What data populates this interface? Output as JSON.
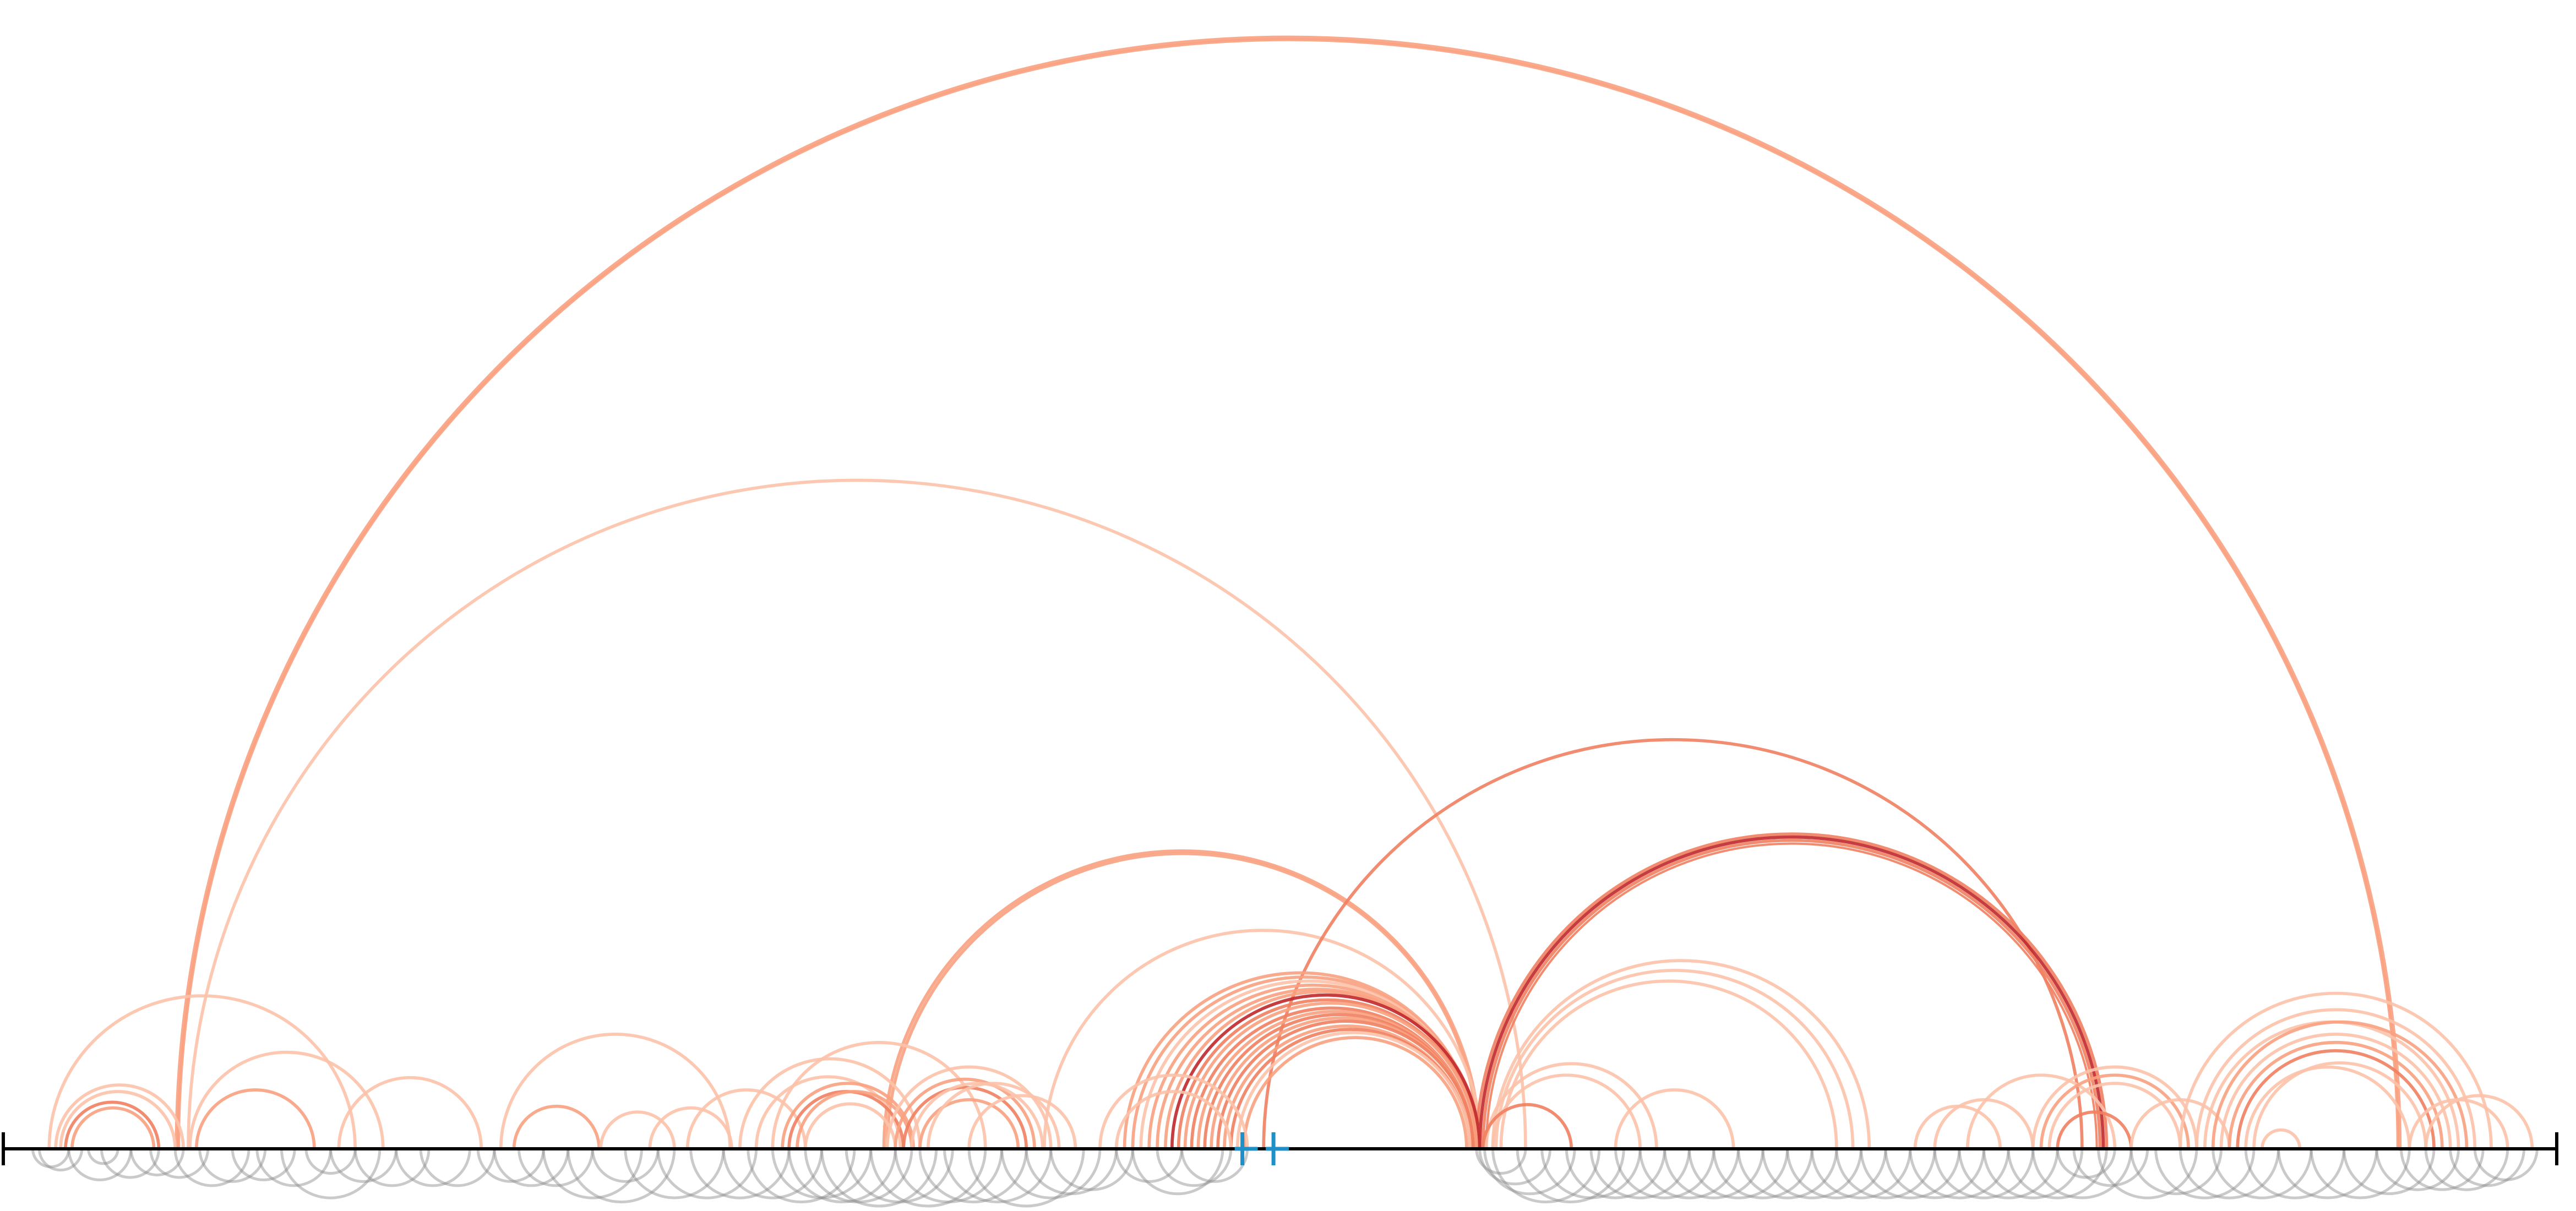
{
  "colors": {
    "axis": "#000000",
    "background": "#ffffff",
    "below_arc": "#8a8a8a",
    "marker": "#1f8fc7",
    "arc_light": "#fcc2aa",
    "arc_mid": "#f9a180",
    "arc_strong": "#f08060",
    "arc_dark": "#c0282c"
  },
  "chart_data": {
    "type": "arc",
    "title": "",
    "xlabel": "",
    "ylabel": "",
    "x_range": [
      0,
      1560
    ],
    "grid": false,
    "legend": "none",
    "markers": [
      {
        "pos": 757,
        "color": "marker"
      },
      {
        "pos": 776,
        "color": "marker"
      }
    ],
    "above_arcs": [
      {
        "start": 106,
        "end": 1464,
        "color": "arc_mid",
        "weight": 3
      },
      {
        "start": 107,
        "end": 1463,
        "color": "arc_mid",
        "weight": 2
      },
      {
        "start": 113,
        "end": 930,
        "color": "arc_light",
        "weight": 2
      },
      {
        "start": 538,
        "end": 902,
        "color": "arc_mid",
        "weight": 2
      },
      {
        "start": 540,
        "end": 901,
        "color": "arc_mid",
        "weight": 2
      },
      {
        "start": 636,
        "end": 903,
        "color": "arc_light",
        "weight": 2
      },
      {
        "start": 770,
        "end": 1270,
        "color": "arc_strong",
        "weight": 2
      },
      {
        "start": 900,
        "end": 1285,
        "color": "arc_strong",
        "weight": 2
      },
      {
        "start": 902,
        "end": 1283,
        "color": "arc_dark",
        "weight": 2
      },
      {
        "start": 904,
        "end": 1281,
        "color": "arc_strong",
        "weight": 2
      },
      {
        "start": 906,
        "end": 1279,
        "color": "arc_strong",
        "weight": 1
      },
      {
        "start": 910,
        "end": 1140,
        "color": "arc_light",
        "weight": 2
      },
      {
        "start": 912,
        "end": 1130,
        "color": "arc_light",
        "weight": 2
      },
      {
        "start": 915,
        "end": 1120,
        "color": "arc_light",
        "weight": 2
      },
      {
        "start": 906,
        "end": 1010,
        "color": "arc_light",
        "weight": 2
      },
      {
        "start": 910,
        "end": 1000,
        "color": "arc_light",
        "weight": 2
      },
      {
        "start": 985,
        "end": 1057,
        "color": "arc_light",
        "weight": 2
      },
      {
        "start": 904,
        "end": 958,
        "color": "arc_strong",
        "weight": 2
      },
      {
        "start": 685,
        "end": 900,
        "color": "arc_mid",
        "weight": 2
      },
      {
        "start": 690,
        "end": 900,
        "color": "arc_mid",
        "weight": 2
      },
      {
        "start": 695,
        "end": 900,
        "color": "arc_light",
        "weight": 2
      },
      {
        "start": 700,
        "end": 900,
        "color": "arc_mid",
        "weight": 2
      },
      {
        "start": 705,
        "end": 900,
        "color": "arc_mid",
        "weight": 2
      },
      {
        "start": 710,
        "end": 902,
        "color": "arc_mid",
        "weight": 2
      },
      {
        "start": 714,
        "end": 902,
        "color": "arc_dark",
        "weight": 2
      },
      {
        "start": 718,
        "end": 900,
        "color": "arc_strong",
        "weight": 2
      },
      {
        "start": 722,
        "end": 900,
        "color": "arc_mid",
        "weight": 2
      },
      {
        "start": 726,
        "end": 898,
        "color": "arc_strong",
        "weight": 2
      },
      {
        "start": 730,
        "end": 898,
        "color": "arc_mid",
        "weight": 2
      },
      {
        "start": 734,
        "end": 898,
        "color": "arc_strong",
        "weight": 2
      },
      {
        "start": 738,
        "end": 898,
        "color": "arc_mid",
        "weight": 2
      },
      {
        "start": 742,
        "end": 898,
        "color": "arc_strong",
        "weight": 2
      },
      {
        "start": 746,
        "end": 896,
        "color": "arc_mid",
        "weight": 2
      },
      {
        "start": 750,
        "end": 896,
        "color": "arc_strong",
        "weight": 2
      },
      {
        "start": 754,
        "end": 896,
        "color": "arc_light",
        "weight": 2
      },
      {
        "start": 758,
        "end": 894,
        "color": "arc_mid",
        "weight": 2
      },
      {
        "start": 670,
        "end": 760,
        "color": "arc_light",
        "weight": 2
      },
      {
        "start": 680,
        "end": 750,
        "color": "arc_light",
        "weight": 2
      },
      {
        "start": 28,
        "end": 215,
        "color": "arc_light",
        "weight": 2
      },
      {
        "start": 32,
        "end": 110,
        "color": "arc_light",
        "weight": 2
      },
      {
        "start": 35,
        "end": 105,
        "color": "arc_light",
        "weight": 2
      },
      {
        "start": 38,
        "end": 95,
        "color": "arc_strong",
        "weight": 2
      },
      {
        "start": 42,
        "end": 92,
        "color": "arc_mid",
        "weight": 2
      },
      {
        "start": 114,
        "end": 232,
        "color": "arc_light",
        "weight": 2
      },
      {
        "start": 118,
        "end": 190,
        "color": "arc_mid",
        "weight": 2
      },
      {
        "start": 205,
        "end": 292,
        "color": "arc_light",
        "weight": 2
      },
      {
        "start": 304,
        "end": 444,
        "color": "arc_light",
        "weight": 2
      },
      {
        "start": 312,
        "end": 364,
        "color": "arc_mid",
        "weight": 2
      },
      {
        "start": 365,
        "end": 410,
        "color": "arc_light",
        "weight": 2
      },
      {
        "start": 395,
        "end": 445,
        "color": "arc_light",
        "weight": 2
      },
      {
        "start": 418,
        "end": 490,
        "color": "arc_light",
        "weight": 2
      },
      {
        "start": 450,
        "end": 560,
        "color": "arc_light",
        "weight": 2
      },
      {
        "start": 460,
        "end": 548,
        "color": "arc_light",
        "weight": 2
      },
      {
        "start": 470,
        "end": 600,
        "color": "arc_light",
        "weight": 2
      },
      {
        "start": 476,
        "end": 556,
        "color": "arc_mid",
        "weight": 2
      },
      {
        "start": 480,
        "end": 550,
        "color": "arc_strong",
        "weight": 2
      },
      {
        "start": 485,
        "end": 555,
        "color": "arc_mid",
        "weight": 2
      },
      {
        "start": 490,
        "end": 545,
        "color": "arc_light",
        "weight": 2
      },
      {
        "start": 540,
        "end": 640,
        "color": "arc_light",
        "weight": 2
      },
      {
        "start": 545,
        "end": 630,
        "color": "arc_mid",
        "weight": 2
      },
      {
        "start": 550,
        "end": 625,
        "color": "arc_strong",
        "weight": 2
      },
      {
        "start": 555,
        "end": 635,
        "color": "arc_light",
        "weight": 2
      },
      {
        "start": 560,
        "end": 620,
        "color": "arc_mid",
        "weight": 2
      },
      {
        "start": 565,
        "end": 645,
        "color": "arc_light",
        "weight": 2
      },
      {
        "start": 590,
        "end": 655,
        "color": "arc_light",
        "weight": 2
      },
      {
        "start": 1168,
        "end": 1220,
        "color": "arc_light",
        "weight": 2
      },
      {
        "start": 1180,
        "end": 1240,
        "color": "arc_light",
        "weight": 2
      },
      {
        "start": 1200,
        "end": 1290,
        "color": "arc_light",
        "weight": 2
      },
      {
        "start": 1240,
        "end": 1340,
        "color": "arc_light",
        "weight": 2
      },
      {
        "start": 1245,
        "end": 1335,
        "color": "arc_mid",
        "weight": 2
      },
      {
        "start": 1250,
        "end": 1330,
        "color": "arc_light",
        "weight": 2
      },
      {
        "start": 1255,
        "end": 1300,
        "color": "arc_strong",
        "weight": 2
      },
      {
        "start": 1300,
        "end": 1360,
        "color": "arc_light",
        "weight": 2
      },
      {
        "start": 1330,
        "end": 1520,
        "color": "arc_light",
        "weight": 2
      },
      {
        "start": 1340,
        "end": 1510,
        "color": "arc_light",
        "weight": 2
      },
      {
        "start": 1345,
        "end": 1500,
        "color": "arc_light",
        "weight": 2
      },
      {
        "start": 1350,
        "end": 1505,
        "color": "arc_mid",
        "weight": 2
      },
      {
        "start": 1355,
        "end": 1495,
        "color": "arc_light",
        "weight": 2
      },
      {
        "start": 1360,
        "end": 1490,
        "color": "arc_mid",
        "weight": 2
      },
      {
        "start": 1365,
        "end": 1485,
        "color": "arc_strong",
        "weight": 2
      },
      {
        "start": 1370,
        "end": 1470,
        "color": "arc_light",
        "weight": 2
      },
      {
        "start": 1375,
        "end": 1480,
        "color": "arc_light",
        "weight": 2
      },
      {
        "start": 1380,
        "end": 1403,
        "color": "arc_light",
        "weight": 2
      },
      {
        "start": 1480,
        "end": 1545,
        "color": "arc_light",
        "weight": 2
      },
      {
        "start": 1470,
        "end": 1530,
        "color": "arc_light",
        "weight": 2
      }
    ],
    "below_arcs": [
      {
        "start": 18,
        "end": 40
      },
      {
        "start": 22,
        "end": 48
      },
      {
        "start": 40,
        "end": 78
      },
      {
        "start": 52,
        "end": 70
      },
      {
        "start": 60,
        "end": 95
      },
      {
        "start": 78,
        "end": 110
      },
      {
        "start": 90,
        "end": 125
      },
      {
        "start": 105,
        "end": 150
      },
      {
        "start": 120,
        "end": 160
      },
      {
        "start": 140,
        "end": 178
      },
      {
        "start": 155,
        "end": 200
      },
      {
        "start": 170,
        "end": 230
      },
      {
        "start": 185,
        "end": 215
      },
      {
        "start": 200,
        "end": 240
      },
      {
        "start": 215,
        "end": 260
      },
      {
        "start": 240,
        "end": 285
      },
      {
        "start": 255,
        "end": 300
      },
      {
        "start": 290,
        "end": 330
      },
      {
        "start": 300,
        "end": 345
      },
      {
        "start": 315,
        "end": 360
      },
      {
        "start": 330,
        "end": 390
      },
      {
        "start": 345,
        "end": 410
      },
      {
        "start": 360,
        "end": 400
      },
      {
        "start": 380,
        "end": 440
      },
      {
        "start": 400,
        "end": 460
      },
      {
        "start": 420,
        "end": 480
      },
      {
        "start": 440,
        "end": 500
      },
      {
        "start": 455,
        "end": 520
      },
      {
        "start": 470,
        "end": 530
      },
      {
        "start": 480,
        "end": 545
      },
      {
        "start": 490,
        "end": 555
      },
      {
        "start": 500,
        "end": 570
      },
      {
        "start": 515,
        "end": 580
      },
      {
        "start": 530,
        "end": 600
      },
      {
        "start": 545,
        "end": 610
      },
      {
        "start": 560,
        "end": 625
      },
      {
        "start": 575,
        "end": 640
      },
      {
        "start": 590,
        "end": 660
      },
      {
        "start": 610,
        "end": 670
      },
      {
        "start": 625,
        "end": 680
      },
      {
        "start": 640,
        "end": 690
      },
      {
        "start": 680,
        "end": 720
      },
      {
        "start": 690,
        "end": 745
      },
      {
        "start": 705,
        "end": 750
      },
      {
        "start": 720,
        "end": 760
      },
      {
        "start": 900,
        "end": 930
      },
      {
        "start": 902,
        "end": 945
      },
      {
        "start": 905,
        "end": 960
      },
      {
        "start": 910,
        "end": 975
      },
      {
        "start": 925,
        "end": 990
      },
      {
        "start": 940,
        "end": 1000
      },
      {
        "start": 955,
        "end": 1015
      },
      {
        "start": 970,
        "end": 1030
      },
      {
        "start": 985,
        "end": 1045
      },
      {
        "start": 1000,
        "end": 1060
      },
      {
        "start": 1015,
        "end": 1075
      },
      {
        "start": 1030,
        "end": 1090
      },
      {
        "start": 1045,
        "end": 1105
      },
      {
        "start": 1060,
        "end": 1120
      },
      {
        "start": 1075,
        "end": 1135
      },
      {
        "start": 1090,
        "end": 1150
      },
      {
        "start": 1105,
        "end": 1165
      },
      {
        "start": 1120,
        "end": 1180
      },
      {
        "start": 1135,
        "end": 1195
      },
      {
        "start": 1150,
        "end": 1210
      },
      {
        "start": 1165,
        "end": 1225
      },
      {
        "start": 1180,
        "end": 1240
      },
      {
        "start": 1195,
        "end": 1255
      },
      {
        "start": 1210,
        "end": 1270
      },
      {
        "start": 1225,
        "end": 1285
      },
      {
        "start": 1240,
        "end": 1300
      },
      {
        "start": 1255,
        "end": 1290
      },
      {
        "start": 1265,
        "end": 1310
      },
      {
        "start": 1280,
        "end": 1340
      },
      {
        "start": 1300,
        "end": 1355
      },
      {
        "start": 1315,
        "end": 1375
      },
      {
        "start": 1330,
        "end": 1390
      },
      {
        "start": 1350,
        "end": 1410
      },
      {
        "start": 1370,
        "end": 1430
      },
      {
        "start": 1390,
        "end": 1450
      },
      {
        "start": 1410,
        "end": 1470
      },
      {
        "start": 1430,
        "end": 1485
      },
      {
        "start": 1450,
        "end": 1500
      },
      {
        "start": 1465,
        "end": 1515
      },
      {
        "start": 1480,
        "end": 1530
      },
      {
        "start": 1495,
        "end": 1540
      },
      {
        "start": 1510,
        "end": 1548
      }
    ]
  }
}
